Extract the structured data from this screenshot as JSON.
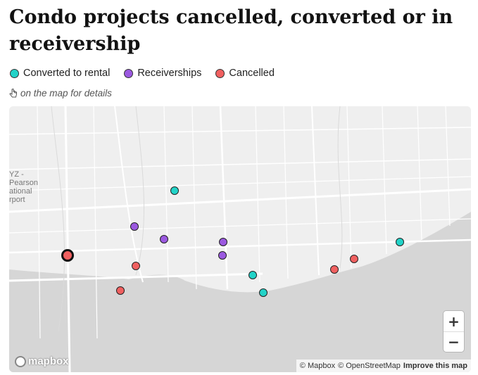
{
  "title": "Condo projects cancelled, converted or in receivership",
  "legend": [
    {
      "label": "Converted to rental",
      "color": "#22d3c8"
    },
    {
      "label": "Receiverships",
      "color": "#9b59e0"
    },
    {
      "label": "Cancelled",
      "color": "#f06060"
    }
  ],
  "hint": {
    "icon": "pointer-hand-icon",
    "text": "on the map for details"
  },
  "map": {
    "place_label": [
      "YZ -",
      "Pearson",
      "ational",
      "rport"
    ],
    "colors": {
      "land": "#efefef",
      "water": "#d6d6d6",
      "roads": "#ffffff"
    },
    "zoom_in": "+",
    "zoom_out": "−",
    "logo": "mapbox",
    "attribution": {
      "mapbox": "© Mapbox",
      "osm": "© OpenStreetMap",
      "improve": "Improve this map"
    }
  }
}
